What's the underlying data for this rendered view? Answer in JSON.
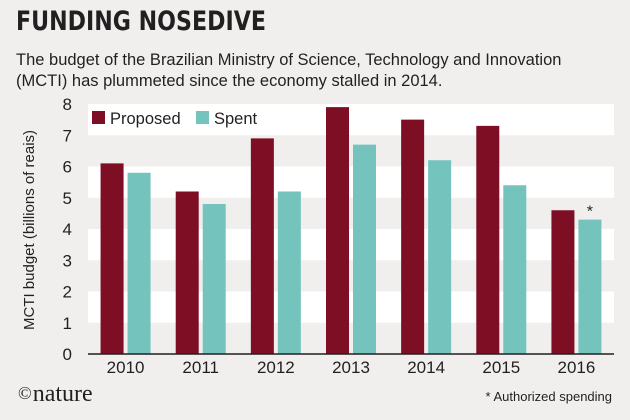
{
  "title": "FUNDING NOSEDIVE",
  "subtitle": "The budget of the Brazilian Ministry of Science, Technology and Innovation (MCTI) has plummeted since the economy stalled in 2014.",
  "footer": {
    "logo_symbol": "©",
    "logo_text": "nature",
    "footnote": "* Authorized spending"
  },
  "colors": {
    "proposed": "#7d0e24",
    "spent": "#74c3bd",
    "background": "#f0efee",
    "plot_band": "#ffffff"
  },
  "chart_data": {
    "type": "bar",
    "title": "FUNDING NOSEDIVE",
    "xlabel": "",
    "ylabel": "MCTI budget (billions of reais)",
    "ylim": [
      0,
      8
    ],
    "yticks": [
      "0",
      "1",
      "2",
      "3",
      "4",
      "5",
      "6",
      "7",
      "8"
    ],
    "categories": [
      "2010",
      "2011",
      "2012",
      "2013",
      "2014",
      "2015",
      "2016"
    ],
    "series": [
      {
        "name": "Proposed",
        "values": [
          6.1,
          5.2,
          6.9,
          7.9,
          7.5,
          7.3,
          4.6
        ]
      },
      {
        "name": "Spent",
        "values": [
          5.8,
          4.8,
          5.2,
          6.7,
          6.2,
          5.4,
          4.3
        ]
      }
    ],
    "annotations": [
      {
        "category": "2016",
        "series": "Spent",
        "text": "*"
      }
    ],
    "legend": "top-left",
    "grid": "alternating horizontal bands"
  }
}
